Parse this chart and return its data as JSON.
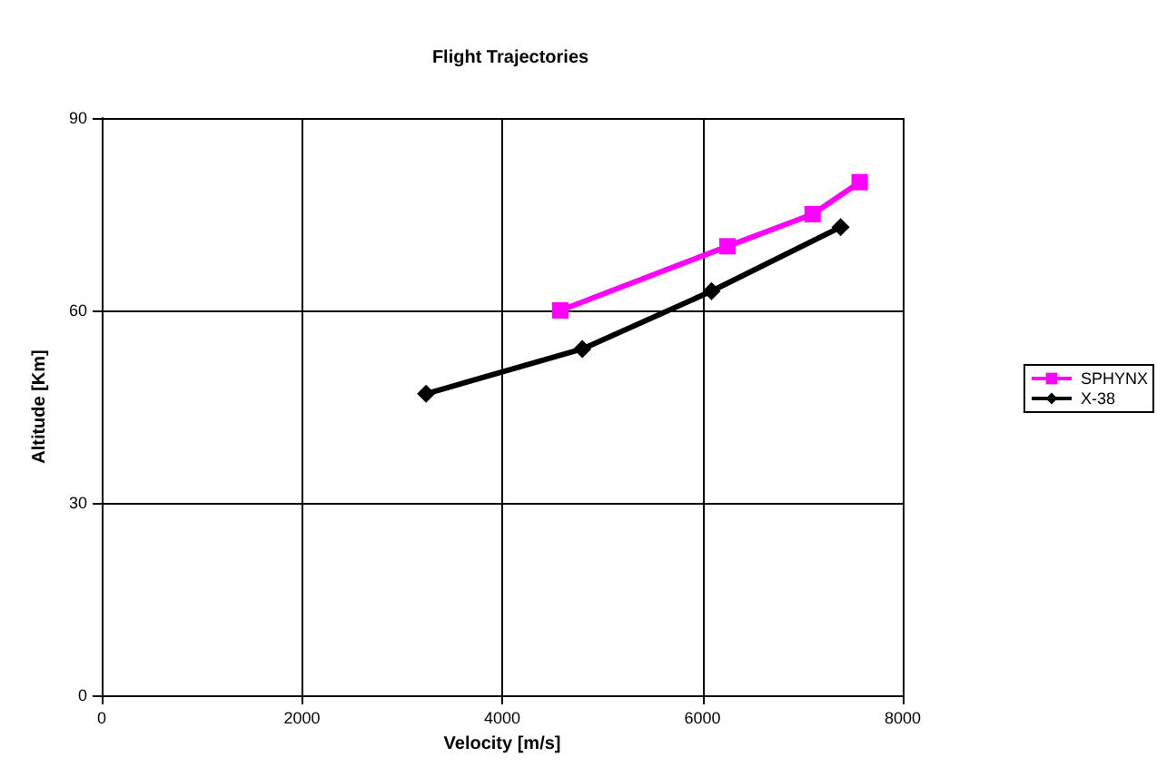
{
  "chart_data": {
    "type": "line",
    "title": "Flight Trajectories",
    "xlabel": "Velocity [m/s]",
    "ylabel": "Altitude [Km]",
    "xlim": [
      0,
      8000
    ],
    "xticks": [
      0,
      2000,
      4000,
      6000,
      8000
    ],
    "ylim": [
      0,
      90
    ],
    "yticks": [
      0,
      30,
      60,
      90
    ],
    "grid": true,
    "legend": "right",
    "series": [
      {
        "name": "SPHYNX",
        "color": "#ff00ff",
        "marker": "square",
        "x": [
          4580,
          6250,
          7100,
          7570
        ],
        "values": [
          60,
          70,
          75,
          80
        ]
      },
      {
        "name": "X-38",
        "color": "#000000",
        "marker": "diamond",
        "x": [
          3240,
          4800,
          6090,
          7380
        ],
        "values": [
          47,
          54,
          63,
          73
        ]
      }
    ]
  }
}
